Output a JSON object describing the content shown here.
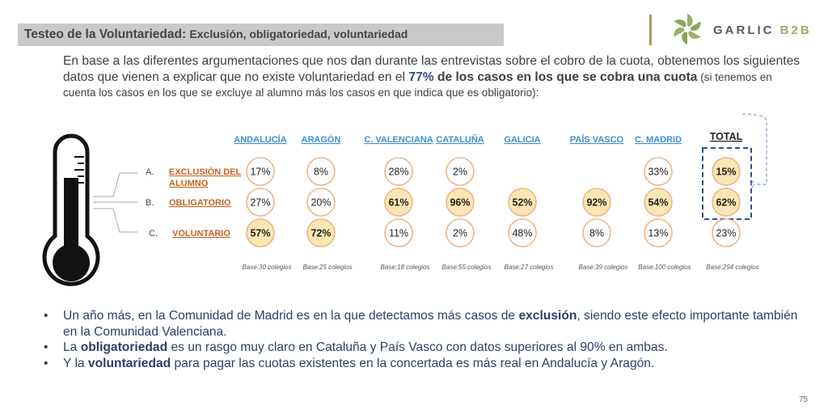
{
  "header": {
    "title_main": "Testeo de la Voluntariedad:",
    "title_sub": "Exclusión, obligatoriedad, voluntariedad"
  },
  "logo": {
    "name": "GARLIC",
    "suffix": "B2B"
  },
  "intro": {
    "p1": "En base a las diferentes argumentaciones que nos dan durante las entrevistas sobre el cobro de la cuota, obtenemos los siguientes datos que vienen a explicar que no existe voluntariedad en el ",
    "pct": "77%",
    "p2": " de los casos en los que se cobra una cuota",
    "p3": " (si tenemos en cuenta los casos en los que se excluye al alumno más los casos en que indica que es obligatorio):"
  },
  "chart_data": {
    "type": "table",
    "categories": [
      "ANDALUCÍA",
      "ARAGÓN",
      "C. VALENCIANA",
      "CATALUÑA",
      "GALICIA",
      "PAÍS VASCO",
      "C. MADRID",
      "TOTAL"
    ],
    "bases": [
      "Base:30 colegios",
      "Base:25 colegios",
      "Base:18 colegios",
      "Base:55 colegios",
      "Base:27 colegios",
      "Base:39 colegios",
      "Base:100  colegios",
      "Base:294 colegios"
    ],
    "series": [
      {
        "letter": "A.",
        "name": "EXCLUSIÓN DEL ALUMNO",
        "name_lines": [
          "EXCLUSIÓN DEL",
          "ALUMNO"
        ],
        "values": [
          17,
          8,
          28,
          2,
          null,
          null,
          33,
          15
        ]
      },
      {
        "letter": "B.",
        "name": "OBLIGATORIO",
        "name_lines": [
          "OBLIGATORIO"
        ],
        "values": [
          27,
          20,
          61,
          96,
          52,
          92,
          54,
          62
        ]
      },
      {
        "letter": "C.",
        "name": "VOLUNTARIO",
        "name_lines": [
          "VOLUNTARIO"
        ],
        "values": [
          57,
          72,
          11,
          2,
          48,
          8,
          13,
          23
        ]
      }
    ],
    "highlighted": [
      [
        false,
        false,
        false,
        false,
        false,
        false,
        false,
        true
      ],
      [
        false,
        false,
        true,
        true,
        true,
        true,
        true,
        true
      ],
      [
        true,
        true,
        false,
        false,
        false,
        false,
        false,
        false
      ]
    ],
    "highlight_total_box": true
  },
  "bullets": [
    {
      "pre": "Un año más, en la Comunidad de Madrid es en la que detectamos más casos de ",
      "bold": "exclusión",
      "post": ", siendo este efecto importante también en la Comunidad Valenciana."
    },
    {
      "pre": "La ",
      "bold": "obligatoriedad",
      "post": " es un rasgo muy claro en Cataluña y País Vasco con datos superiores al 90% en ambas."
    },
    {
      "pre": "Y la ",
      "bold": "voluntariedad",
      "post": " para pagar las cuotas existentes en la concertada es más real en Andalucía y Aragón."
    }
  ],
  "page_number": "75",
  "colors": {
    "header_bg": "#c9c9c9",
    "accent_blue": "#2f4d8a",
    "category_blue": "#3d8fd1",
    "label_orange": "#c8641e",
    "circle_stroke": "#ecb58a",
    "highlight_fill": "#fbe6b3",
    "logo_green": "#9cae6a"
  }
}
